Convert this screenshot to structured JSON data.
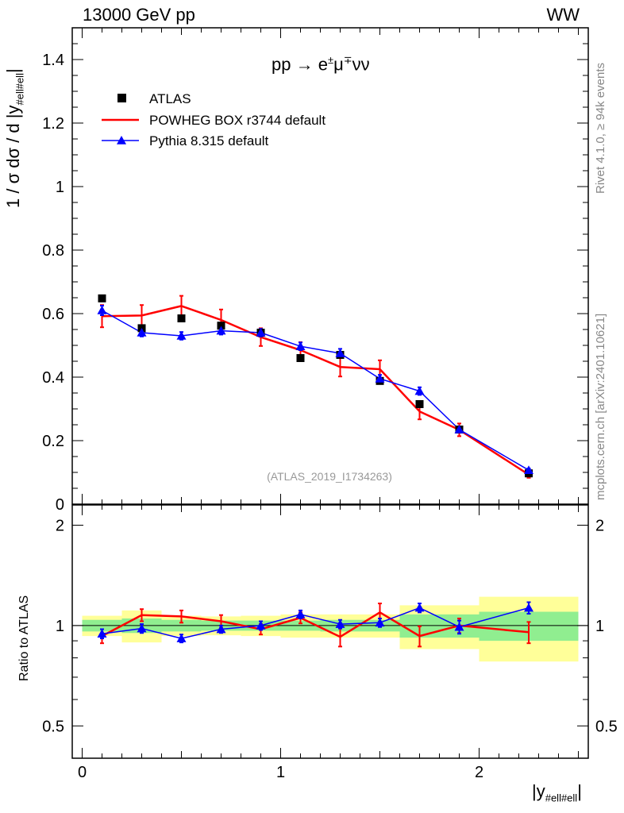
{
  "header": {
    "left": "13000 GeV pp",
    "right": "WW"
  },
  "side_labels": {
    "rivet": "Rivet 4.1.0, ≥ 94k events",
    "mcplots": "mcplots.cern.ch [arXiv:2401.10621]"
  },
  "chart_data": [
    {
      "type": "line",
      "title": "pp → e±μ∓νν",
      "process": {
        "lead": "pp  →  e",
        "sup1": "±",
        "mid": "μ",
        "sup2": "∓",
        "tail": "νν"
      },
      "ylabel": {
        "main": "1 / σ  dσ / d |y",
        "sub": "#ell#ell",
        "end": "|"
      },
      "xlabel": {
        "main": "|y",
        "sub": "#ell#ell",
        "end": "|"
      },
      "ylim": [
        0,
        1.5
      ],
      "xlim": [
        -0.05,
        2.55
      ],
      "yticks": [
        0,
        0.2,
        0.4,
        0.6,
        0.8,
        1,
        1.2,
        1.4
      ],
      "ytick_labels": [
        "0",
        "0.2",
        "0.4",
        "0.6",
        "0.8",
        "1",
        "1.2",
        "1.4"
      ],
      "analysis_tag": "(ATLAS_2019_I1734263)",
      "legend_position": "top-left",
      "series": [
        {
          "name": "ATLAS",
          "color": "#000000",
          "marker": "square",
          "x": [
            0.1,
            0.3,
            0.5,
            0.7,
            0.9,
            1.1,
            1.3,
            1.5,
            1.7,
            1.9,
            2.25
          ],
          "values": [
            0.648,
            0.554,
            0.585,
            0.562,
            0.54,
            0.46,
            0.47,
            0.388,
            0.315,
            0.235,
            0.097
          ]
        },
        {
          "name": "POWHEG BOX r3744 default",
          "color": "#ff0000",
          "marker": "line",
          "x": [
            0.1,
            0.3,
            0.5,
            0.7,
            0.9,
            1.1,
            1.3,
            1.5,
            1.7,
            1.9,
            2.25
          ],
          "values": [
            0.592,
            0.594,
            0.624,
            0.58,
            0.526,
            0.485,
            0.432,
            0.425,
            0.292,
            0.234,
            0.093
          ],
          "errors": [
            0.035,
            0.033,
            0.032,
            0.033,
            0.028,
            0.025,
            0.03,
            0.028,
            0.025,
            0.02,
            0.01
          ],
          "x_edges": [
            0,
            0.2,
            0.4,
            0.6,
            0.8,
            1.0,
            1.2,
            1.4,
            1.6,
            1.8,
            2.0,
            2.5
          ]
        },
        {
          "name": "Pythia 8.315 default",
          "color": "#0000ff",
          "marker": "triangle",
          "x": [
            0.1,
            0.3,
            0.5,
            0.7,
            0.9,
            1.1,
            1.3,
            1.5,
            1.7,
            1.9,
            2.25
          ],
          "values": [
            0.61,
            0.54,
            0.53,
            0.546,
            0.54,
            0.497,
            0.475,
            0.395,
            0.356,
            0.235,
            0.107
          ],
          "errors": [
            0.015,
            0.012,
            0.012,
            0.012,
            0.012,
            0.012,
            0.014,
            0.012,
            0.012,
            0.01,
            0.005
          ]
        }
      ]
    },
    {
      "type": "line",
      "ylabel": "Ratio to ATLAS",
      "yscale": "log",
      "ylim": [
        0.4,
        2.3
      ],
      "yticks": [
        0.5,
        1,
        2
      ],
      "ytick_labels": [
        "0.5",
        "1",
        "2"
      ],
      "xticks": [
        0,
        1,
        2
      ],
      "xtick_labels": [
        "0",
        "1",
        "2"
      ],
      "reference": 1,
      "bands": {
        "x_edges": [
          0,
          0.2,
          0.4,
          0.6,
          0.8,
          1.0,
          1.2,
          1.4,
          1.6,
          1.8,
          2.0,
          2.5
        ],
        "inner_lo": [
          0.96,
          0.95,
          0.96,
          0.965,
          0.965,
          0.965,
          0.96,
          0.96,
          0.92,
          0.92,
          0.9
        ],
        "inner_hi": [
          1.04,
          1.05,
          1.04,
          1.035,
          1.035,
          1.035,
          1.04,
          1.04,
          1.08,
          1.08,
          1.1
        ],
        "outer_lo": [
          0.93,
          0.89,
          0.93,
          0.935,
          0.93,
          0.92,
          0.92,
          0.92,
          0.85,
          0.85,
          0.78
        ],
        "outer_hi": [
          1.07,
          1.11,
          1.07,
          1.065,
          1.07,
          1.08,
          1.08,
          1.08,
          1.15,
          1.15,
          1.22
        ],
        "inner_color": "#90ee90",
        "outer_color": "#ffff99"
      },
      "series": [
        {
          "name": "POWHEG BOX r3744 default",
          "color": "#ff0000",
          "x": [
            0.1,
            0.3,
            0.5,
            0.7,
            0.9,
            1.1,
            1.3,
            1.5,
            1.7,
            1.9,
            2.25
          ],
          "values": [
            0.93,
            1.075,
            1.065,
            1.03,
            0.975,
            1.055,
            0.925,
            1.095,
            0.93,
            1.0,
            0.955
          ],
          "errors": [
            0.045,
            0.045,
            0.045,
            0.045,
            0.035,
            0.04,
            0.06,
            0.07,
            0.065,
            0.05,
            0.07
          ]
        },
        {
          "name": "Pythia 8.315 default",
          "color": "#0000ff",
          "x": [
            0.1,
            0.3,
            0.5,
            0.7,
            0.9,
            1.1,
            1.3,
            1.5,
            1.7,
            1.9,
            2.25
          ],
          "values": [
            0.945,
            0.98,
            0.915,
            0.975,
            1.0,
            1.08,
            1.01,
            1.02,
            1.13,
            0.99,
            1.13
          ],
          "errors": [
            0.03,
            0.03,
            0.025,
            0.025,
            0.03,
            0.03,
            0.03,
            0.03,
            0.035,
            0.045,
            0.045
          ]
        }
      ]
    }
  ]
}
